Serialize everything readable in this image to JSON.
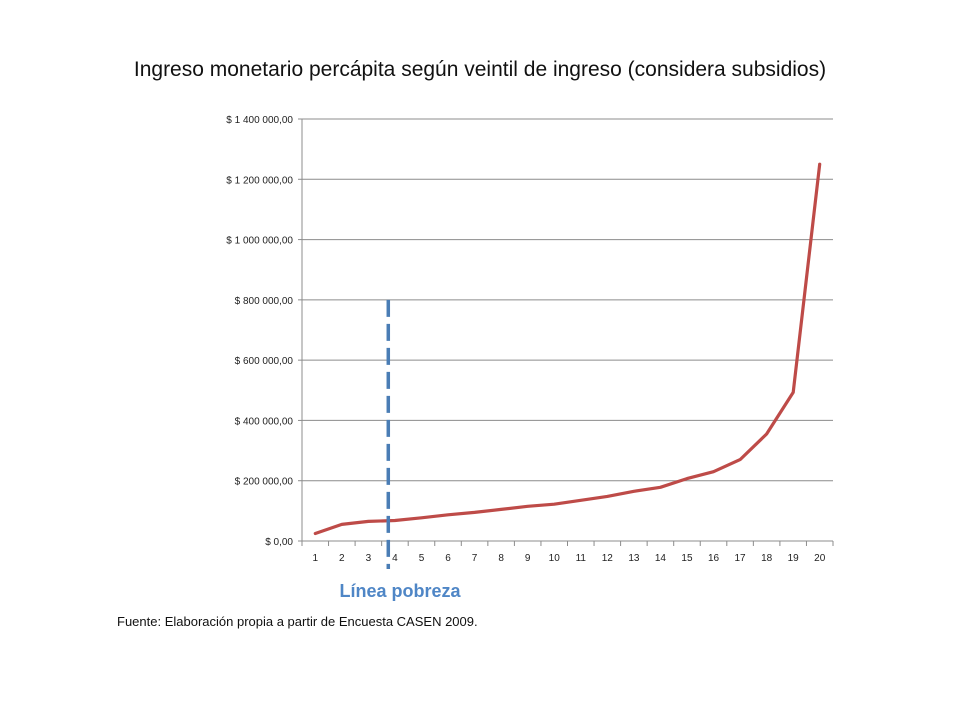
{
  "title": "Ingreso monetario percápita según veintil de ingreso (considera subsidios)",
  "source": "Fuente: Elaboración propia a partir de Encuesta CASEN 2009.",
  "chart_data": {
    "type": "line",
    "title": "Ingreso monetario percápita según veintil de ingreso (considera subsidios)",
    "xlabel": "",
    "ylabel": "",
    "categories": [
      "1",
      "2",
      "3",
      "4",
      "5",
      "6",
      "7",
      "8",
      "9",
      "10",
      "11",
      "12",
      "13",
      "14",
      "15",
      "16",
      "17",
      "18",
      "19",
      "20"
    ],
    "series": [
      {
        "values": [
          25000,
          55000,
          65000,
          68000,
          77000,
          87000,
          95000,
          105000,
          115000,
          122000,
          135000,
          148000,
          165000,
          178000,
          207000,
          230000,
          270000,
          355000,
          493000,
          1250000
        ],
        "color": "#be4b48"
      }
    ],
    "ylim": [
      0,
      1400000
    ],
    "yticks": [
      0,
      200000,
      400000,
      600000,
      800000,
      1000000,
      1200000,
      1400000
    ],
    "ytick_labels": [
      "$ 0,00",
      "$ 200 000,00",
      "$ 400 000,00",
      "$ 600 000,00",
      "$ 800 000,00",
      "$ 1 000 000,00",
      "$ 1 200 000,00",
      "$ 1 400 000,00"
    ],
    "grid": true,
    "legend": "none",
    "annotations": [
      {
        "type": "vertical-dashed-line",
        "x": 3.75,
        "y_top": 800000,
        "color": "#4a7db5",
        "label": "Línea pobreza",
        "label_color": "#4f86c6"
      }
    ]
  }
}
